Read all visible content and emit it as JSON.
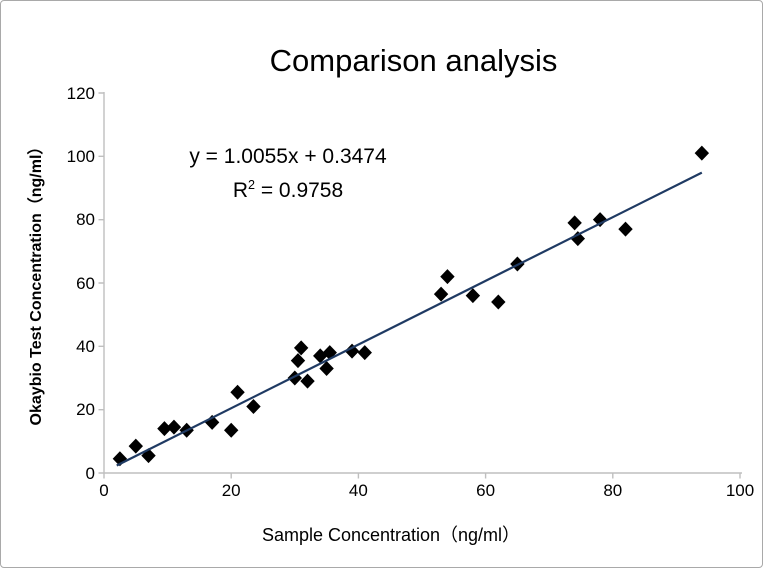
{
  "chart": {
    "title": "Comparison analysis",
    "equation": "y = 1.0055x + 0.3474",
    "r2_prefix": "R",
    "r2_sup": "2",
    "r2_suffix": " = 0.9758",
    "xlabel": "Sample Concentration（ng/ml）",
    "ylabel": "Okaybio Test Concentration（ng/ml）"
  },
  "chart_data": {
    "type": "scatter",
    "title": "Comparison analysis",
    "xlabel": "Sample Concentration（ng/ml）",
    "ylabel": "Okaybio Test Concentration（ng/ml）",
    "xlim": [
      0,
      100
    ],
    "ylim": [
      0,
      120
    ],
    "x_ticks": [
      0,
      20,
      40,
      60,
      80,
      100
    ],
    "y_ticks": [
      0,
      20,
      40,
      60,
      80,
      100,
      120
    ],
    "grid": false,
    "legend": false,
    "axis_color": "#bfbfbf",
    "marker": {
      "shape": "diamond",
      "color": "#000000",
      "size": 15
    },
    "points": [
      [
        2.5,
        4.5
      ],
      [
        5,
        8.5
      ],
      [
        7,
        5.5
      ],
      [
        9.5,
        14
      ],
      [
        11,
        14.5
      ],
      [
        13,
        13.5
      ],
      [
        17,
        16
      ],
      [
        20,
        13.5
      ],
      [
        21,
        25.5
      ],
      [
        23.5,
        21
      ],
      [
        30,
        30
      ],
      [
        30.5,
        35.5
      ],
      [
        31,
        39.5
      ],
      [
        32,
        29
      ],
      [
        34,
        37
      ],
      [
        35,
        33
      ],
      [
        35.5,
        38
      ],
      [
        39,
        38.5
      ],
      [
        41,
        38
      ],
      [
        53,
        56.5
      ],
      [
        54,
        62
      ],
      [
        58,
        56
      ],
      [
        62,
        54
      ],
      [
        65,
        66
      ],
      [
        74,
        79
      ],
      [
        74.5,
        74
      ],
      [
        78,
        80
      ],
      [
        82,
        77
      ],
      [
        94,
        101
      ]
    ],
    "trendline": {
      "slope": 1.0055,
      "intercept": 0.3474,
      "r_squared": 0.9758,
      "x_start": 2,
      "x_end": 94,
      "color": "#1f3a63"
    },
    "annotations": [
      "y = 1.0055x + 0.3474",
      "R² = 0.9758"
    ]
  }
}
